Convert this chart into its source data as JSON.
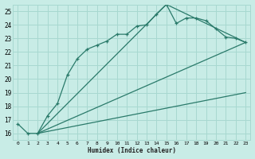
{
  "xlabel": "Humidex (Indice chaleur)",
  "ylabel": "",
  "background_color": "#c8ece6",
  "grid_color": "#a8d8d0",
  "line_color": "#2a7a6a",
  "xlim": [
    -0.5,
    23.5
  ],
  "ylim": [
    15.5,
    25.5
  ],
  "xticks": [
    0,
    1,
    2,
    3,
    4,
    5,
    6,
    7,
    8,
    9,
    10,
    11,
    12,
    13,
    14,
    15,
    16,
    17,
    18,
    19,
    20,
    21,
    22,
    23
  ],
  "yticks": [
    16,
    17,
    18,
    19,
    20,
    21,
    22,
    23,
    24,
    25
  ],
  "series1_x": [
    0,
    1,
    2,
    3,
    4,
    5,
    6,
    7,
    8,
    9,
    10,
    11,
    12,
    13,
    14,
    15,
    16,
    17,
    18,
    19,
    20,
    21,
    22,
    23
  ],
  "series1_y": [
    16.7,
    16.0,
    16.0,
    17.3,
    18.2,
    20.3,
    21.5,
    22.2,
    22.5,
    22.8,
    23.3,
    23.3,
    23.9,
    24.0,
    24.8,
    25.5,
    24.1,
    24.5,
    24.5,
    24.3,
    23.7,
    23.1,
    23.0,
    22.7
  ],
  "line2_x": [
    2,
    23
  ],
  "line2_y": [
    16.0,
    22.7
  ],
  "line3_x": [
    2,
    15,
    23
  ],
  "line3_y": [
    16.0,
    25.5,
    22.7
  ],
  "line4_x": [
    2,
    23
  ],
  "line4_y": [
    16.0,
    19.0
  ]
}
